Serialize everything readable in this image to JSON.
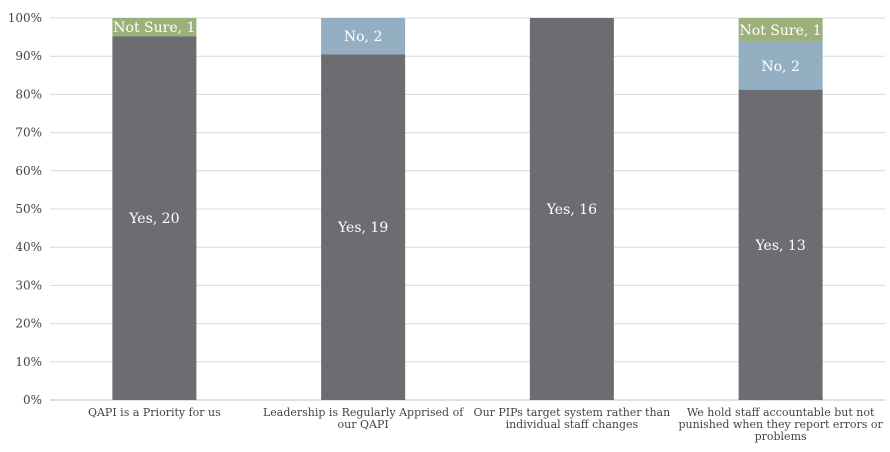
{
  "chart_data": {
    "type": "bar",
    "stacked": "percent",
    "categories": [
      [
        "QAPI is a Priority for us"
      ],
      [
        "Leadership is Regularly Apprised of",
        "our QAPI"
      ],
      [
        "Our PIPs target system rather than",
        "individual staff changes"
      ],
      [
        "We hold staff accountable but not",
        "punished when they report errors or",
        "problems"
      ]
    ],
    "series": [
      {
        "name": "Yes",
        "values": [
          20,
          19,
          16,
          13
        ],
        "color": "#6d6c70"
      },
      {
        "name": "No",
        "values": [
          0,
          2,
          0,
          2
        ],
        "color": "#94afc1"
      },
      {
        "name": "Not Sure",
        "values": [
          1,
          0,
          0,
          1
        ],
        "color": "#9cb07a"
      }
    ],
    "data_labels": [
      [
        "Yes, 20",
        "",
        "Not Sure, 1"
      ],
      [
        "Yes, 19",
        "No, 2",
        ""
      ],
      [
        "Yes, 16",
        "",
        ""
      ],
      [
        "Yes, 13",
        "No, 2",
        "Not Sure, 1"
      ]
    ],
    "y_ticks": [
      "0%",
      "10%",
      "20%",
      "30%",
      "40%",
      "50%",
      "60%",
      "70%",
      "80%",
      "90%",
      "100%"
    ],
    "ylim": [
      0,
      100
    ],
    "grid": true,
    "legend": "none",
    "title": "",
    "xlabel": "",
    "ylabel": ""
  }
}
